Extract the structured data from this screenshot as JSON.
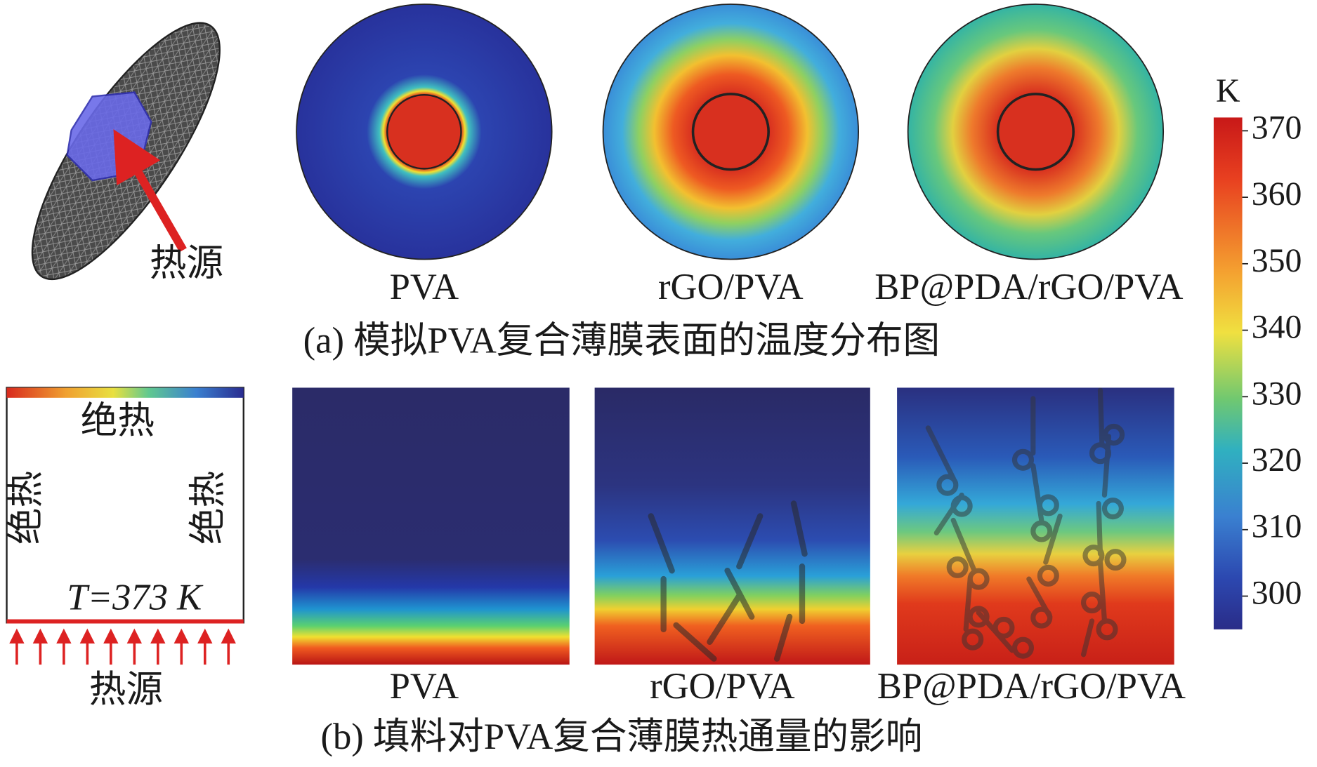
{
  "panel_a": {
    "source_label": "热源",
    "samples": [
      "PVA",
      "rGO/PVA",
      "BP@PDA/rGO/PVA"
    ],
    "caption": "(a) 模拟PVA复合薄膜表面的温度分布图"
  },
  "panel_b": {
    "insulated_top": "绝热",
    "insulated_left": "绝热",
    "insulated_right": "绝热",
    "boundary_temperature": "T=373 K",
    "source_label": "热源",
    "samples": [
      "PVA",
      "rGO/PVA",
      "BP@PDA/rGO/PVA"
    ],
    "caption": "(b) 填料对PVA复合薄膜热通量的影响"
  },
  "colorbar": {
    "unit": "K",
    "range": [
      295,
      372
    ],
    "ticks": [
      300,
      310,
      320,
      330,
      340,
      350,
      360,
      370
    ]
  }
}
